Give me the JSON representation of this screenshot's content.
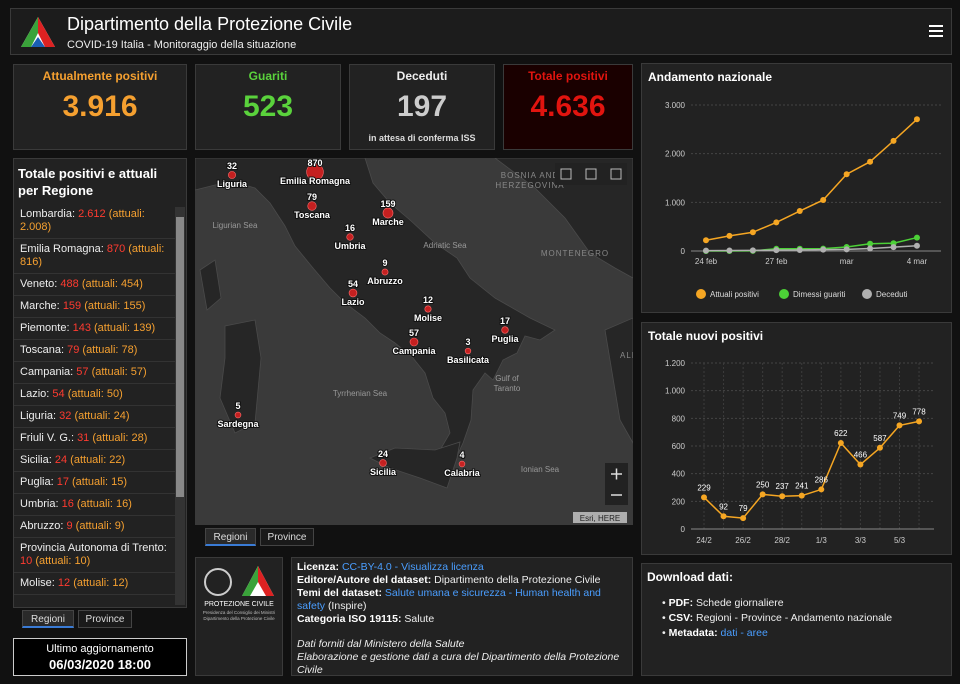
{
  "header": {
    "title": "Dipartimento della Protezione Civile",
    "subtitle": "COVID-19 Italia - Monitoraggio della situazione"
  },
  "kpis": [
    {
      "title": "Attualmente positivi",
      "value": "3.916",
      "color": "#f5a030"
    },
    {
      "title": "Guariti",
      "value": "523",
      "color": "#5ad23c"
    },
    {
      "title": "Deceduti",
      "value": "197",
      "note": "in attesa di conferma ISS",
      "color": "#cccccc"
    },
    {
      "title": "Totale positivi",
      "value": "4.636",
      "color": "#e1140f"
    }
  ],
  "regions": {
    "title": "Totale positivi e attuali per Regione",
    "rows": [
      {
        "label": "Lombardia:",
        "total": "2.612",
        "actual": "(attuali: 2.008)"
      },
      {
        "label": "Emilia Romagna:",
        "total": "870",
        "actual": "(attuali: 816)"
      },
      {
        "label": "Veneto:",
        "total": "488",
        "actual": "(attuali: 454)"
      },
      {
        "label": "Marche:",
        "total": "159",
        "actual": "(attuali: 155)"
      },
      {
        "label": "Piemonte:",
        "total": "143",
        "actual": "(attuali: 139)"
      },
      {
        "label": "Toscana:",
        "total": "79",
        "actual": "(attuali: 78)"
      },
      {
        "label": "Campania:",
        "total": "57",
        "actual": "(attuali: 57)"
      },
      {
        "label": "Lazio:",
        "total": "54",
        "actual": "(attuali: 50)"
      },
      {
        "label": "Liguria:",
        "total": "32",
        "actual": "(attuali: 24)"
      },
      {
        "label": "Friuli V. G.:",
        "total": "31",
        "actual": "(attuali: 28)"
      },
      {
        "label": "Sicilia:",
        "total": "24",
        "actual": "(attuali: 22)"
      },
      {
        "label": "Puglia:",
        "total": "17",
        "actual": "(attuali: 15)"
      },
      {
        "label": "Umbria:",
        "total": "16",
        "actual": "(attuali: 16)"
      },
      {
        "label": "Abruzzo:",
        "total": "9",
        "actual": "(attuali: 9)"
      },
      {
        "label": "Provincia Autonoma di Trento:",
        "total": "10",
        "actual": "(attuali: 10)"
      },
      {
        "label": "Molise:",
        "total": "12",
        "actual": "(attuali: 12)"
      }
    ],
    "tabs": [
      "Regioni",
      "Province"
    ]
  },
  "update": {
    "label": "Ultimo aggiornamento",
    "date": "06/03/2020 18:00"
  },
  "map": {
    "points": [
      {
        "name": "Liguria",
        "value": 32
      },
      {
        "name": "Emilia Romagna",
        "value": 870
      },
      {
        "name": "Toscana",
        "value": 79
      },
      {
        "name": "Marche",
        "value": 159
      },
      {
        "name": "Umbria",
        "value": 16
      },
      {
        "name": "Abruzzo",
        "value": 9
      },
      {
        "name": "Lazio",
        "value": 54
      },
      {
        "name": "Molise",
        "value": 12
      },
      {
        "name": "Campania",
        "value": 57
      },
      {
        "name": "Puglia",
        "value": 17
      },
      {
        "name": "Basilicata",
        "value": 3
      },
      {
        "name": "Sardegna",
        "value": 5
      },
      {
        "name": "Sicilia",
        "value": 24
      },
      {
        "name": "Calabria",
        "value": 4
      }
    ],
    "seas": [
      "Ligurian Sea",
      "Adriatic Sea",
      "Tyrrhenian Sea",
      "Gulf of",
      "Taranto",
      "Ionian Sea"
    ],
    "countries": [
      "BOSNIA AND",
      "HERZEGOVINA",
      "MONTENEGRO",
      "ALBANIA"
    ],
    "attribution": "Esri, HERE",
    "tabs": [
      "Regioni",
      "Province"
    ]
  },
  "logo": {
    "name": "PROTEZIONE CIVILE",
    "caption": "Presidenza del Consiglio dei Ministri",
    "caption2": "Dipartimento della Protezione Civile"
  },
  "info": {
    "license_label": "Licenza:",
    "license": "CC-BY-4.0 - Visualizza licenza",
    "author_label": "Editore/Autore del dataset:",
    "author": "Dipartimento della Protezione Civile",
    "themes_label": "Temi del dataset:",
    "themes": "Salute umana e sicurezza - Human health and safety",
    "themes_note": "(Inspire)",
    "iso_label": "Categoria ISO 19115:",
    "iso": "Salute",
    "source": "Dati forniti dal Ministero della Salute",
    "processing": "Elaborazione e gestione dati a cura del Dipartimento della Protezione Civile"
  },
  "download": {
    "title": "Download dati:",
    "items": [
      {
        "label": "PDF:",
        "text": "Schede giornaliere"
      },
      {
        "label": "CSV:",
        "text": "Regioni - Province - Andamento nazionale"
      },
      {
        "label": "Metadata:",
        "text": "dati - aree"
      }
    ]
  },
  "chart_data": [
    {
      "type": "line",
      "title": "Andamento nazionale",
      "categories": [
        "24 feb",
        null,
        null,
        "27 feb",
        null,
        null,
        "mar",
        null,
        null,
        "4 mar"
      ],
      "series": [
        {
          "name": "Attuali positivi",
          "color": "#f5a623",
          "values": [
            221,
            311,
            385,
            588,
            821,
            1049,
            1577,
            1835,
            2263,
            2706
          ]
        },
        {
          "name": "Dimessi guariti",
          "color": "#4cd137",
          "values": [
            1,
            1,
            3,
            45,
            46,
            50,
            83,
            149,
            160,
            276
          ]
        },
        {
          "name": "Deceduti",
          "color": "#b0b0b0",
          "values": [
            7,
            10,
            12,
            17,
            21,
            29,
            34,
            52,
            79,
            107
          ]
        }
      ],
      "ylim": [
        0,
        3000
      ],
      "yticks": [
        0,
        {
          "value": 1000,
          "label": "1.000"
        },
        {
          "value": 2000,
          "label": "2.000"
        },
        {
          "value": 3000,
          "label": "3.000"
        }
      ],
      "grid": true,
      "legend": "bottom"
    },
    {
      "type": "line",
      "title": "Totale nuovi positivi",
      "categories": [
        "24/2",
        null,
        "26/2",
        null,
        "28/2",
        null,
        "1/3",
        null,
        "3/3",
        null,
        "5/3",
        null
      ],
      "series": [
        {
          "name": "Nuovi positivi",
          "color": "#f5a623",
          "values": [
            229,
            92,
            79,
            250,
            237,
            241,
            286,
            622,
            466,
            587,
            749,
            778
          ]
        }
      ],
      "ylim": [
        0,
        1200
      ],
      "yticks": [
        0,
        200,
        400,
        600,
        800,
        {
          "value": 1000,
          "label": "1.000"
        },
        {
          "value": 1200,
          "label": "1.200"
        }
      ],
      "grid": true,
      "value_labels_shown": true
    }
  ]
}
